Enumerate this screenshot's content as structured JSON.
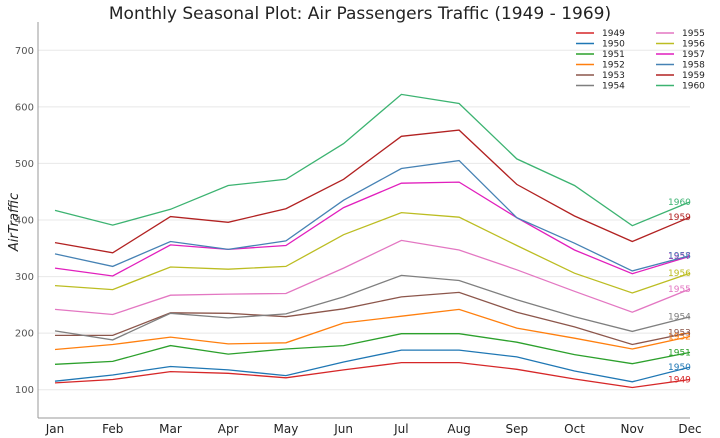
{
  "chart_data": {
    "type": "line",
    "title": "Monthly Seasonal Plot: Air Passengers Traffic (1949 - 1969)",
    "xlabel": "",
    "ylabel": "AirTraffic",
    "ylim": [
      50,
      750
    ],
    "yticks": [
      100,
      200,
      300,
      400,
      500,
      600,
      700
    ],
    "grid": true,
    "legend_position": "top-right",
    "categories": [
      "Jan",
      "Feb",
      "Mar",
      "Apr",
      "May",
      "Jun",
      "Jul",
      "Aug",
      "Sep",
      "Oct",
      "Nov",
      "Dec"
    ],
    "series": [
      {
        "name": "1949",
        "color": "#d62728",
        "values": [
          112,
          118,
          132,
          129,
          121,
          135,
          148,
          148,
          136,
          119,
          104,
          118
        ]
      },
      {
        "name": "1950",
        "color": "#1f77b4",
        "values": [
          115,
          126,
          141,
          135,
          125,
          149,
          170,
          170,
          158,
          133,
          114,
          140
        ]
      },
      {
        "name": "1951",
        "color": "#2ca02c",
        "values": [
          145,
          150,
          178,
          163,
          172,
          178,
          199,
          199,
          184,
          162,
          146,
          166
        ]
      },
      {
        "name": "1952",
        "color": "#ff7f0e",
        "values": [
          171,
          180,
          193,
          181,
          183,
          218,
          230,
          242,
          209,
          191,
          172,
          194
        ]
      },
      {
        "name": "1953",
        "color": "#8c564b",
        "values": [
          196,
          196,
          236,
          235,
          229,
          243,
          264,
          272,
          237,
          211,
          180,
          201
        ]
      },
      {
        "name": "1954",
        "color": "#7f7f7f",
        "values": [
          204,
          188,
          235,
          227,
          234,
          264,
          302,
          293,
          259,
          229,
          203,
          229
        ]
      },
      {
        "name": "1955",
        "color": "#e377c2",
        "values": [
          242,
          233,
          267,
          269,
          270,
          315,
          364,
          347,
          312,
          274,
          237,
          278
        ]
      },
      {
        "name": "1956",
        "color": "#bcbd22",
        "values": [
          284,
          277,
          317,
          313,
          318,
          374,
          413,
          405,
          355,
          306,
          271,
          306
        ]
      },
      {
        "name": "1957",
        "color": "#e11fbd",
        "values": [
          315,
          301,
          356,
          348,
          355,
          422,
          465,
          467,
          404,
          347,
          305,
          336
        ]
      },
      {
        "name": "1958",
        "color": "#4682b4",
        "values": [
          340,
          318,
          362,
          348,
          363,
          435,
          491,
          505,
          404,
          359,
          310,
          337
        ]
      },
      {
        "name": "1959",
        "color": "#b22222",
        "values": [
          360,
          342,
          406,
          396,
          420,
          472,
          548,
          559,
          463,
          407,
          362,
          405
        ]
      },
      {
        "name": "1960",
        "color": "#3cb371",
        "values": [
          417,
          391,
          419,
          461,
          472,
          535,
          622,
          606,
          508,
          461,
          390,
          432
        ]
      }
    ]
  }
}
